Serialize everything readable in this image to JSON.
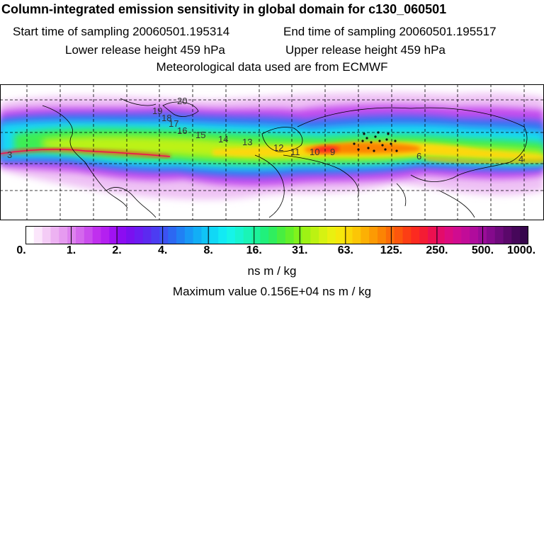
{
  "header": {
    "title": "Column-integrated emission sensitivity in global domain for c130_060501",
    "start": "Start time of sampling 20060501.195314",
    "end": "End time of sampling 20060501.195517",
    "lower": "Lower release height  459 hPa",
    "upper": "Upper release height  459 hPa",
    "met": "Meteorological data used are from ECMWF"
  },
  "colorbar": {
    "ticks": [
      "0.",
      "1.",
      "2.",
      "4.",
      "8.",
      "16.",
      "31.",
      "63.",
      "125.",
      "250.",
      "500.",
      "1000."
    ],
    "colors": [
      "#ffffff",
      "#fbe6fb",
      "#f4ccf6",
      "#edb2f2",
      "#e69bf0",
      "#dd82ee",
      "#d468ed",
      "#ca4ded",
      "#c030ee",
      "#b420f0",
      "#a012f2",
      "#8c0cf2",
      "#7a10f0",
      "#6c1cf2",
      "#5c2af0",
      "#4c3cf2",
      "#3c52f2",
      "#2c68f2",
      "#2080f4",
      "#1898f6",
      "#12aef6",
      "#10c4f6",
      "#10d8f6",
      "#12eaf4",
      "#16f4e8",
      "#18f4d0",
      "#1af4b6",
      "#1cf29a",
      "#20f07c",
      "#30ee5e",
      "#48ee40",
      "#62f02a",
      "#80f21c",
      "#9ef214",
      "#bcf212",
      "#d6f212",
      "#eaf010",
      "#f6e80c",
      "#fad808",
      "#fcc606",
      "#fcb004",
      "#fc9a04",
      "#fc8404",
      "#fc6c08",
      "#fc560c",
      "#fc3e14",
      "#fc2a20",
      "#f41c34",
      "#ec1050",
      "#e40c6a",
      "#dc0c80",
      "#d00c90",
      "#c20c98",
      "#b00c9c",
      "#9a0c98",
      "#840a8c",
      "#6e0a7c",
      "#5a086a",
      "#46075a",
      "#36064c"
    ]
  },
  "map_labels": [
    "20",
    "19",
    "18",
    "17",
    "16",
    "15",
    "14",
    "13",
    "12",
    "11",
    "10",
    "9",
    "6",
    "4",
    "3"
  ],
  "units": "ns m / kg",
  "max_value": "Maximum value  0.156E+04 ns m / kg"
}
